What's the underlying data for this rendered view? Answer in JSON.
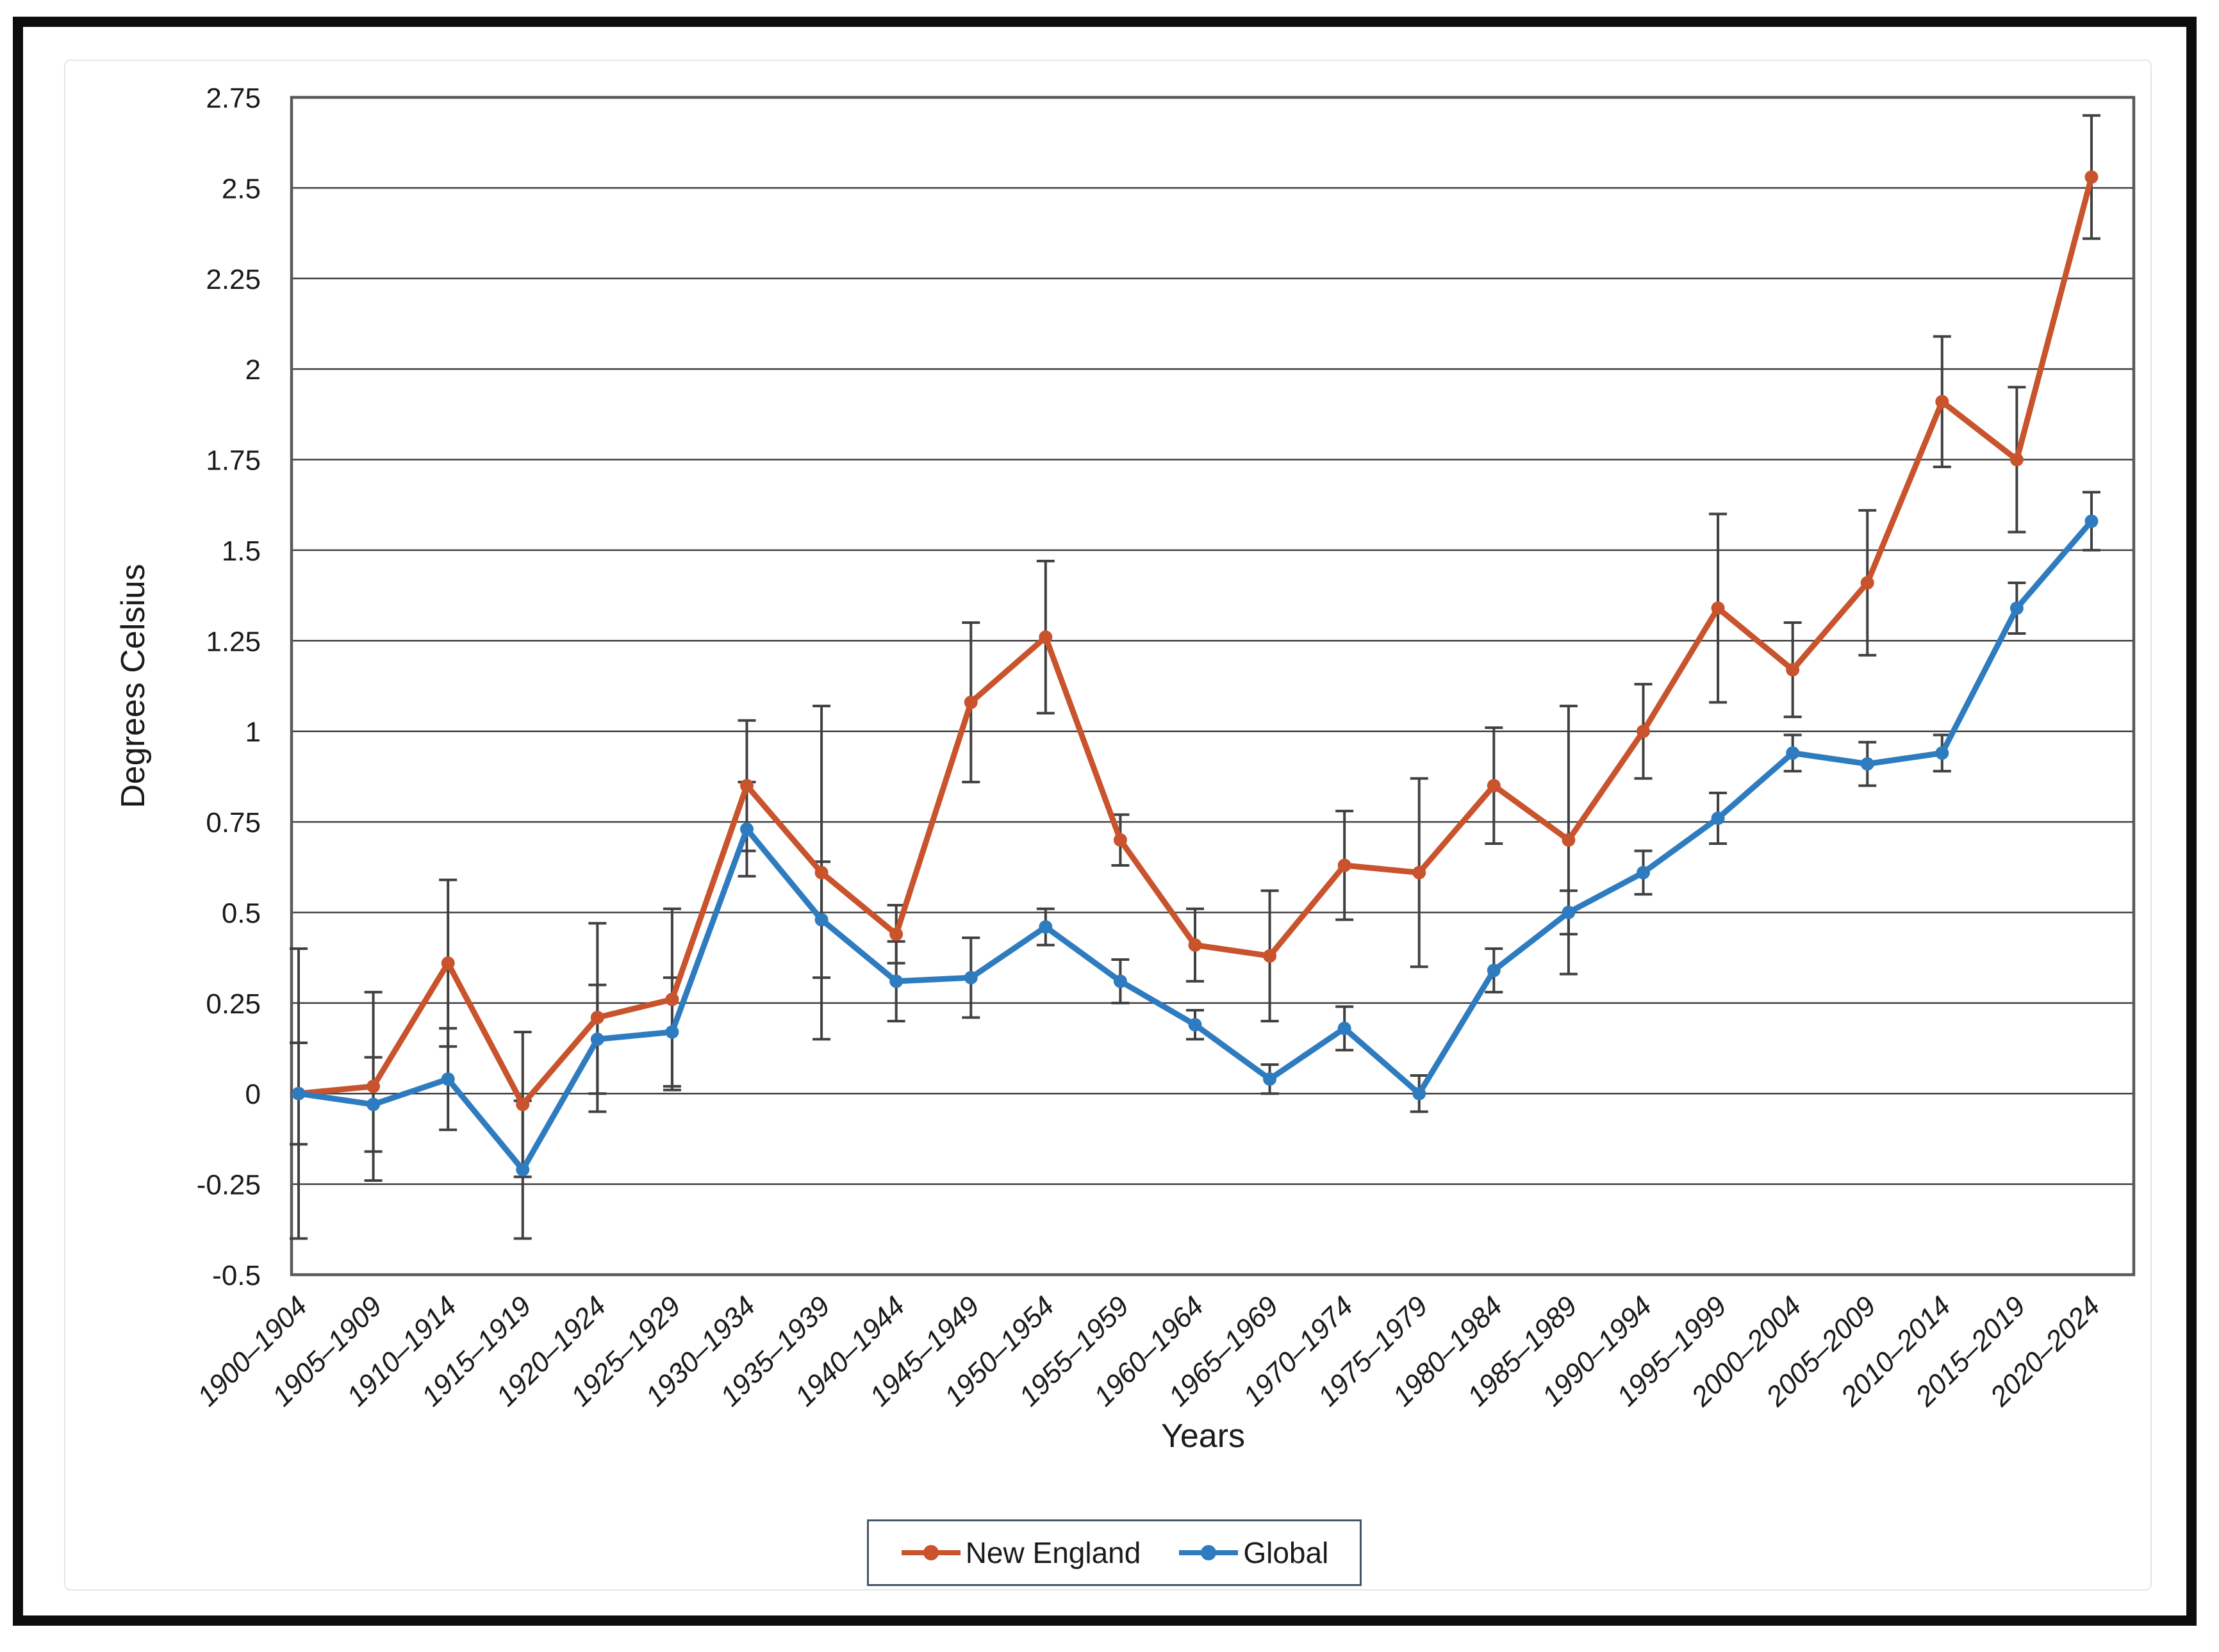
{
  "chart_data": {
    "type": "line",
    "title": "",
    "xlabel": "Years",
    "ylabel": "Degrees Celsius",
    "categories": [
      "1900–1904",
      "1905–1909",
      "1910–1914",
      "1915–1919",
      "1920–1924",
      "1925–1929",
      "1930–1934",
      "1935–1939",
      "1940–1944",
      "1945–1949",
      "1950–1954",
      "1955–1959",
      "1960–1964",
      "1965–1969",
      "1970–1974",
      "1975–1979",
      "1980–1984",
      "1985–1989",
      "1990–1994",
      "1995–1999",
      "2000–2004",
      "2005–2009",
      "2010–2014",
      "2015–2019",
      "2020–2024"
    ],
    "series": [
      {
        "name": "New England",
        "color": "#c8532c",
        "values": [
          0.0,
          0.02,
          0.36,
          -0.03,
          0.21,
          0.26,
          0.85,
          0.61,
          0.44,
          1.08,
          1.26,
          0.7,
          0.41,
          0.38,
          0.63,
          0.61,
          0.85,
          0.7,
          1.0,
          1.34,
          1.17,
          1.41,
          1.91,
          1.75,
          2.53
        ],
        "errors": [
          0.4,
          0.26,
          0.23,
          0.2,
          0.26,
          0.25,
          0.18,
          0.46,
          0.08,
          0.22,
          0.21,
          0.07,
          0.1,
          0.18,
          0.15,
          0.26,
          0.16,
          0.37,
          0.13,
          0.26,
          0.13,
          0.2,
          0.18,
          0.2,
          0.17
        ]
      },
      {
        "name": "Global",
        "color": "#2e7cbf",
        "values": [
          0.0,
          -0.03,
          0.04,
          -0.21,
          0.15,
          0.17,
          0.73,
          0.48,
          0.31,
          0.32,
          0.46,
          0.31,
          0.19,
          0.04,
          0.18,
          0.0,
          0.34,
          0.5,
          0.61,
          0.76,
          0.94,
          0.91,
          0.94,
          1.34,
          1.58
        ],
        "errors": [
          0.14,
          0.13,
          0.14,
          0.19,
          0.15,
          0.15,
          0.13,
          0.16,
          0.11,
          0.11,
          0.05,
          0.06,
          0.04,
          0.04,
          0.06,
          0.05,
          0.06,
          0.06,
          0.06,
          0.07,
          0.05,
          0.06,
          0.05,
          0.07,
          0.08
        ]
      }
    ],
    "ylim": [
      -0.5,
      2.75
    ],
    "y_tick_step": 0.25,
    "y_ticks": [
      "2.75",
      "2.5",
      "2.25",
      "2",
      "1.75",
      "1.5",
      "1.25",
      "1",
      "0.75",
      "0.5",
      "0.25",
      "0",
      "-0.25",
      "-0.5"
    ],
    "grid": "horizontal-on",
    "legend_position": "bottom",
    "colors": {
      "gridline": "#3f3f3f",
      "plot_border": "#595959",
      "error_bar": "#404040",
      "axis_text": "#1a1a1a"
    }
  }
}
